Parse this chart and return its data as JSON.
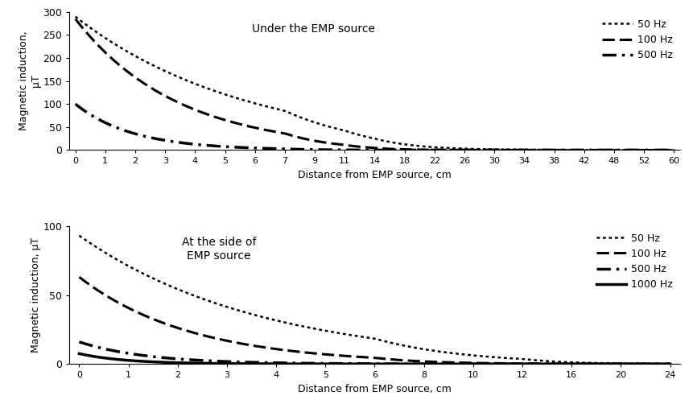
{
  "top": {
    "title": "Under the EMP source",
    "xlabel": "Distance from EMP source, cm",
    "ylabel": "Magnetic induction,\nμT",
    "ylim": [
      0,
      300
    ],
    "yticks": [
      0,
      50,
      100,
      150,
      200,
      250,
      300
    ],
    "xtick_labels": [
      "0",
      "1",
      "2",
      "3",
      "4",
      "5",
      "6",
      "7",
      "9",
      "11",
      "14",
      "18",
      "22",
      "26",
      "30",
      "34",
      "38",
      "42",
      "48",
      "52",
      "60"
    ],
    "xtick_vals": [
      0,
      1,
      2,
      3,
      4,
      5,
      6,
      7,
      9,
      11,
      14,
      18,
      22,
      26,
      30,
      34,
      38,
      42,
      48,
      52,
      60
    ],
    "series": [
      {
        "label": "50 Hz",
        "style": "dotted",
        "lw": 1.8,
        "A": 290,
        "k": 0.175
      },
      {
        "label": "100 Hz",
        "style": "dashed",
        "lw": 2.2,
        "A": 285,
        "k": 0.295
      },
      {
        "label": "500 Hz",
        "style": "dashdot",
        "lw": 2.5,
        "A": 100,
        "k": 0.52
      }
    ]
  },
  "bottom": {
    "title": "At the side of\nEMP source",
    "xlabel": "Distance from EMP source, cm",
    "ylabel": "Magnetic induction, μT",
    "ylim": [
      0,
      100
    ],
    "yticks": [
      0,
      50,
      100
    ],
    "xtick_labels": [
      "0",
      "1",
      "2",
      "3",
      "4",
      "5",
      "6",
      "8",
      "10",
      "12",
      "16",
      "20",
      "24"
    ],
    "xtick_vals": [
      0,
      1,
      2,
      3,
      4,
      5,
      6,
      8,
      10,
      12,
      16,
      20,
      24
    ],
    "series": [
      {
        "label": "50 Hz",
        "style": "dotted",
        "lw": 1.8,
        "A": 93,
        "k": 0.27
      },
      {
        "label": "100 Hz",
        "style": "dashed",
        "lw": 2.2,
        "A": 63,
        "k": 0.44
      },
      {
        "label": "500 Hz",
        "style": "dashdot",
        "lw": 2.5,
        "A": 16,
        "k": 0.73
      },
      {
        "label": "1000 Hz",
        "style": "solid",
        "lw": 2.5,
        "A": 7.5,
        "k": 1.05
      }
    ]
  }
}
